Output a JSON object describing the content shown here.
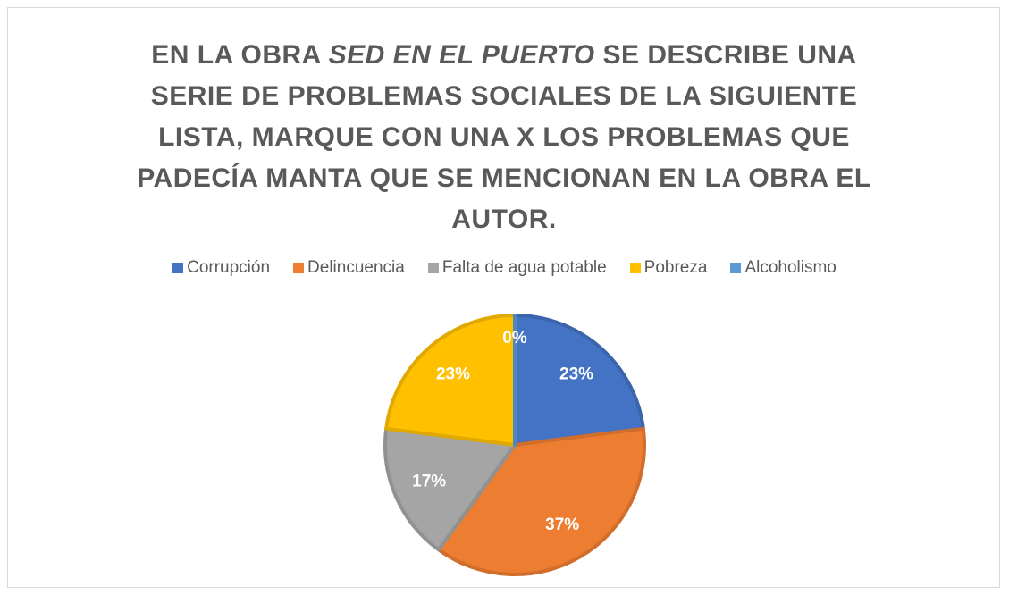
{
  "chart_data": {
    "type": "pie",
    "title": [
      "EN LA OBRA",
      "SED EN EL PUERTO",
      "SE DESCRIBE UNA SERIE DE PROBLEMAS SOCIALES DE LA SIGUIENTE LISTA, MARQUE CON UNA X LOS PROBLEMAS QUE PADECÍA MANTA QUE SE MENCIONAN EN LA OBRA EL AUTOR."
    ],
    "categories": [
      "Corrupción",
      "Delincuencia",
      "Falta de agua potable",
      "Pobreza",
      "Alcoholismo"
    ],
    "values": [
      23,
      37,
      17,
      23,
      0
    ],
    "value_labels": [
      "23%",
      "37%",
      "17%",
      "23%",
      "0%"
    ],
    "colors": [
      "#4472c4",
      "#ed7d31",
      "#a5a5a5",
      "#ffc000",
      "#5b9bd5"
    ],
    "legend": "top"
  }
}
